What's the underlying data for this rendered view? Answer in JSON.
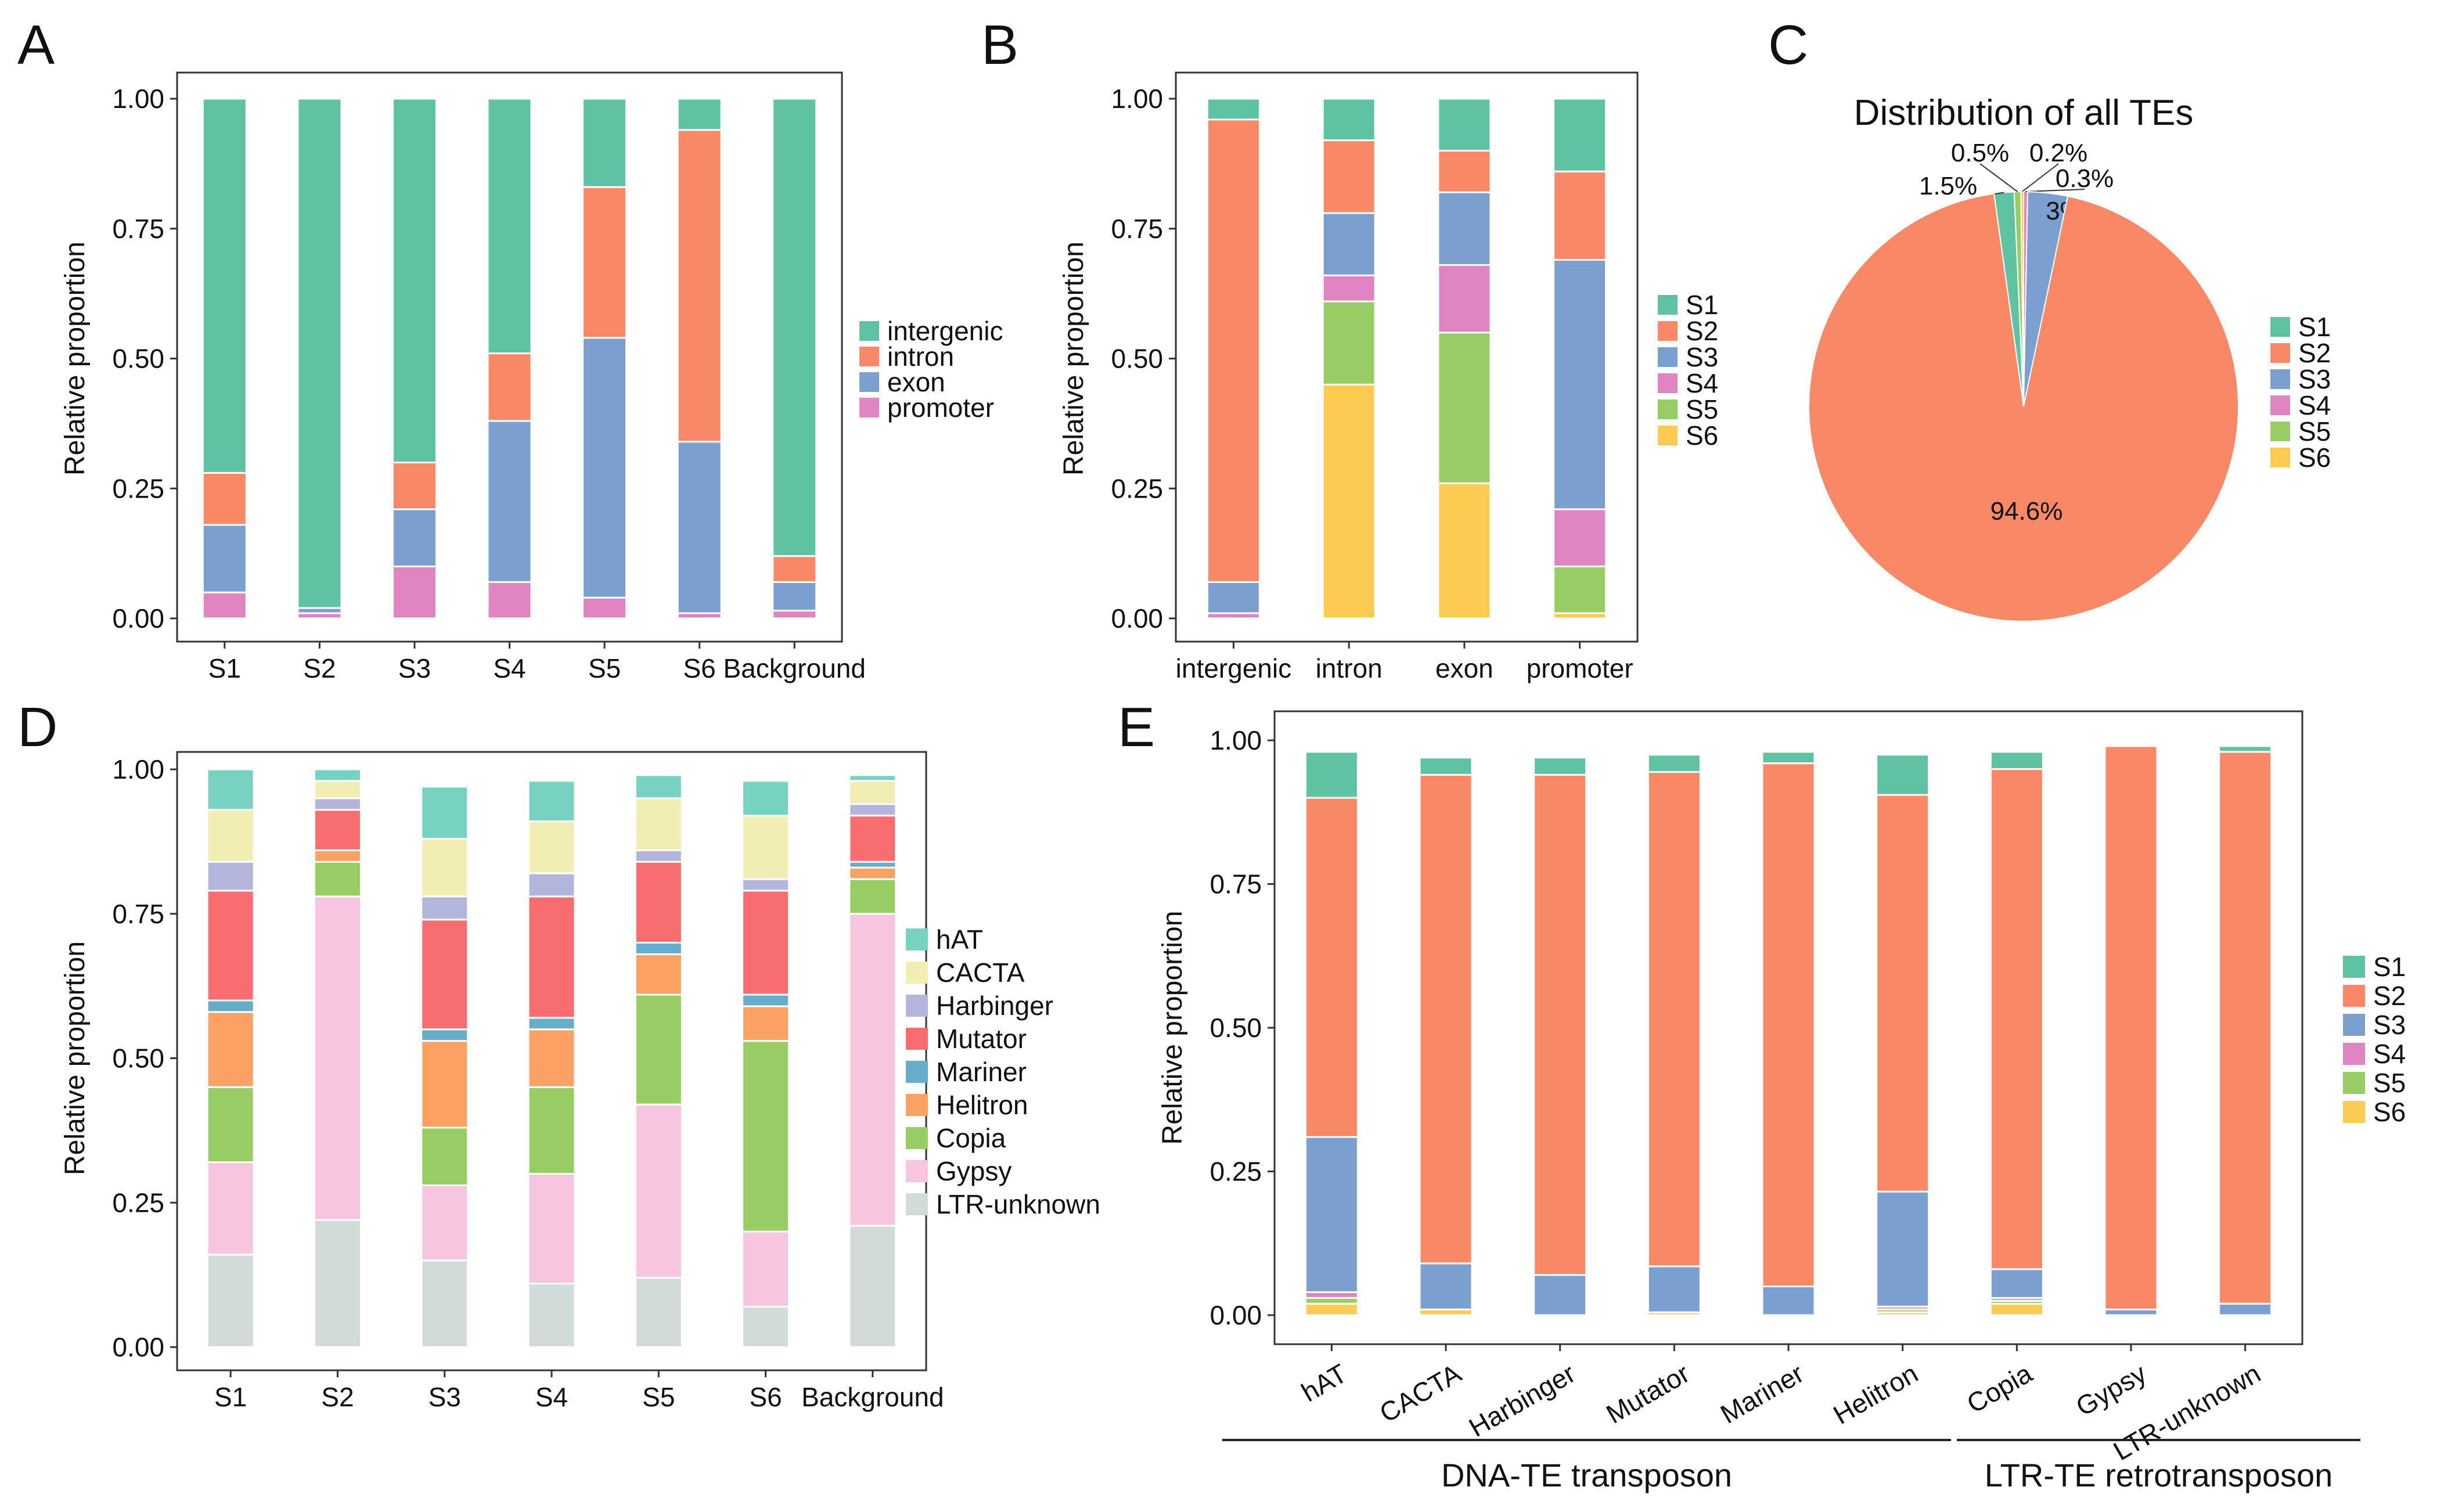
{
  "figure": {
    "panel_letters": [
      "A",
      "B",
      "C",
      "D",
      "E"
    ]
  },
  "chart_data": [
    {
      "id": "A",
      "type": "bar",
      "stacked": true,
      "title": "",
      "xlabel": "",
      "ylabel": "Relative proportion",
      "ylim": [
        0,
        1
      ],
      "yticks": [
        "0.00",
        "0.25",
        "0.50",
        "0.75",
        "1.00"
      ],
      "categories": [
        "S1",
        "S2",
        "S3",
        "S4",
        "S5",
        "S6",
        "Background"
      ],
      "series": [
        {
          "name": "promoter",
          "color": "#df86c2",
          "values": [
            0.05,
            0.01,
            0.1,
            0.07,
            0.04,
            0.01,
            0.015
          ]
        },
        {
          "name": "exon",
          "color": "#7b9fce",
          "values": [
            0.13,
            0.01,
            0.11,
            0.31,
            0.5,
            0.33,
            0.055
          ]
        },
        {
          "name": "intron",
          "color": "#f98866",
          "values": [
            0.1,
            0.0,
            0.09,
            0.13,
            0.29,
            0.6,
            0.05
          ]
        },
        {
          "name": "intergenic",
          "color": "#5fc3a3",
          "values": [
            0.72,
            0.98,
            0.7,
            0.49,
            0.17,
            0.06,
            0.88
          ]
        }
      ],
      "legend_order": [
        "intergenic",
        "intron",
        "exon",
        "promoter"
      ]
    },
    {
      "id": "B",
      "type": "bar",
      "stacked": true,
      "title": "",
      "xlabel": "",
      "ylabel": "Relative proportion",
      "ylim": [
        0,
        1
      ],
      "yticks": [
        "0.00",
        "0.25",
        "0.50",
        "0.75",
        "1.00"
      ],
      "categories": [
        "intergenic",
        "intron",
        "exon",
        "promoter"
      ],
      "series": [
        {
          "name": "S6",
          "color": "#fdcb52",
          "values": [
            0.0,
            0.45,
            0.26,
            0.01
          ]
        },
        {
          "name": "S5",
          "color": "#98cc65",
          "values": [
            0.0,
            0.16,
            0.29,
            0.09
          ]
        },
        {
          "name": "S4",
          "color": "#df86c2",
          "values": [
            0.01,
            0.05,
            0.13,
            0.11
          ]
        },
        {
          "name": "S3",
          "color": "#7b9fce",
          "values": [
            0.06,
            0.12,
            0.14,
            0.48
          ]
        },
        {
          "name": "S2",
          "color": "#f98866",
          "values": [
            0.89,
            0.14,
            0.08,
            0.17
          ]
        },
        {
          "name": "S1",
          "color": "#5fc3a3",
          "values": [
            0.04,
            0.08,
            0.1,
            0.14
          ]
        }
      ],
      "legend_order": [
        "S1",
        "S2",
        "S3",
        "S4",
        "S5",
        "S6"
      ]
    },
    {
      "id": "C",
      "type": "pie",
      "title": "Distribution of all TEs",
      "slices": [
        {
          "name": "S1",
          "color": "#5fc3a3",
          "value": 1.5,
          "label": "1.5%"
        },
        {
          "name": "S5",
          "color": "#98cc65",
          "value": 0.5,
          "label": "0.5%"
        },
        {
          "name": "S6",
          "color": "#fdcb52",
          "value": 0.2,
          "label": "0.2%"
        },
        {
          "name": "S4",
          "color": "#df86c2",
          "value": 0.3,
          "label": "0.3%"
        },
        {
          "name": "S3",
          "color": "#7b9fce",
          "value": 3,
          "label": "3%"
        },
        {
          "name": "S2",
          "color": "#f98866",
          "value": 94.6,
          "label": "94.6%"
        }
      ],
      "legend_order": [
        "S1",
        "S2",
        "S3",
        "S4",
        "S5",
        "S6"
      ]
    },
    {
      "id": "D",
      "type": "bar",
      "stacked": true,
      "title": "",
      "xlabel": "",
      "ylabel": "Relative proportion",
      "ylim": [
        0,
        1
      ],
      "yticks": [
        "0.00",
        "0.25",
        "0.50",
        "0.75",
        "1.00"
      ],
      "categories": [
        "S1",
        "S2",
        "S3",
        "S4",
        "S5",
        "S6",
        "Background"
      ],
      "series": [
        {
          "name": "LTR-unknown",
          "color": "#d3dbd8",
          "values": [
            0.16,
            0.22,
            0.15,
            0.11,
            0.12,
            0.07,
            0.21
          ]
        },
        {
          "name": "Gypsy",
          "color": "#f7c5de",
          "values": [
            0.16,
            0.56,
            0.13,
            0.19,
            0.3,
            0.13,
            0.54
          ]
        },
        {
          "name": "Copia",
          "color": "#98cc65",
          "values": [
            0.13,
            0.06,
            0.1,
            0.15,
            0.19,
            0.33,
            0.06
          ]
        },
        {
          "name": "Helitron",
          "color": "#f9a263",
          "values": [
            0.13,
            0.02,
            0.15,
            0.1,
            0.07,
            0.06,
            0.02
          ]
        },
        {
          "name": "Mariner",
          "color": "#66adc9",
          "values": [
            0.02,
            0.0,
            0.02,
            0.02,
            0.02,
            0.02,
            0.01
          ]
        },
        {
          "name": "Mutator",
          "color": "#f86e6e",
          "values": [
            0.19,
            0.07,
            0.19,
            0.21,
            0.14,
            0.18,
            0.08
          ]
        },
        {
          "name": "Harbinger",
          "color": "#b3b6dc",
          "values": [
            0.05,
            0.02,
            0.04,
            0.04,
            0.02,
            0.02,
            0.02
          ]
        },
        {
          "name": "CACTA",
          "color": "#f2eeb3",
          "values": [
            0.09,
            0.03,
            0.1,
            0.09,
            0.09,
            0.11,
            0.04
          ]
        },
        {
          "name": "hAT",
          "color": "#78d2c2",
          "values": [
            0.07,
            0.02,
            0.09,
            0.07,
            0.04,
            0.06,
            0.01
          ]
        }
      ],
      "legend_order": [
        "hAT",
        "CACTA",
        "Harbinger",
        "Mutator",
        "Mariner",
        "Helitron",
        "Copia",
        "Gypsy",
        "LTR-unknown"
      ]
    },
    {
      "id": "E",
      "type": "bar",
      "stacked": true,
      "title": "",
      "xlabel": "",
      "ylabel": "Relative proportion",
      "ylim": [
        0,
        1
      ],
      "yticks": [
        "0.00",
        "0.25",
        "0.50",
        "0.75",
        "1.00"
      ],
      "categories": [
        "hAT",
        "CACTA",
        "Harbinger",
        "Mutator",
        "Mariner",
        "Helitron",
        "Copia",
        "Gypsy",
        "LTR-unknown"
      ],
      "series": [
        {
          "name": "S6",
          "color": "#fdcb52",
          "values": [
            0.02,
            0.01,
            0.0,
            0.005,
            0.0,
            0.005,
            0.02,
            0.0,
            0.0
          ]
        },
        {
          "name": "S5",
          "color": "#98cc65",
          "values": [
            0.01,
            0.0,
            0.0,
            0.0,
            0.0,
            0.005,
            0.005,
            0.0,
            0.0
          ]
        },
        {
          "name": "S4",
          "color": "#df86c2",
          "values": [
            0.01,
            0.0,
            0.0,
            0.0,
            0.0,
            0.005,
            0.005,
            0.0,
            0.0
          ]
        },
        {
          "name": "S3",
          "color": "#7b9fce",
          "values": [
            0.27,
            0.08,
            0.07,
            0.08,
            0.05,
            0.2,
            0.05,
            0.01,
            0.02
          ]
        },
        {
          "name": "S2",
          "color": "#f98866",
          "values": [
            0.59,
            0.85,
            0.87,
            0.86,
            0.91,
            0.69,
            0.87,
            0.98,
            0.96
          ]
        },
        {
          "name": "S1",
          "color": "#5fc3a3",
          "values": [
            0.08,
            0.03,
            0.03,
            0.03,
            0.02,
            0.07,
            0.03,
            0.0,
            0.01
          ]
        }
      ],
      "legend_order": [
        "S1",
        "S2",
        "S3",
        "S4",
        "S5",
        "S6"
      ],
      "groups": [
        {
          "label": "DNA-TE transposon",
          "categories": [
            "hAT",
            "CACTA",
            "Harbinger",
            "Mutator",
            "Mariner",
            "Helitron"
          ]
        },
        {
          "label": "LTR-TE retrotransposon",
          "categories": [
            "Copia",
            "Gypsy",
            "LTR-unknown"
          ]
        }
      ]
    }
  ]
}
